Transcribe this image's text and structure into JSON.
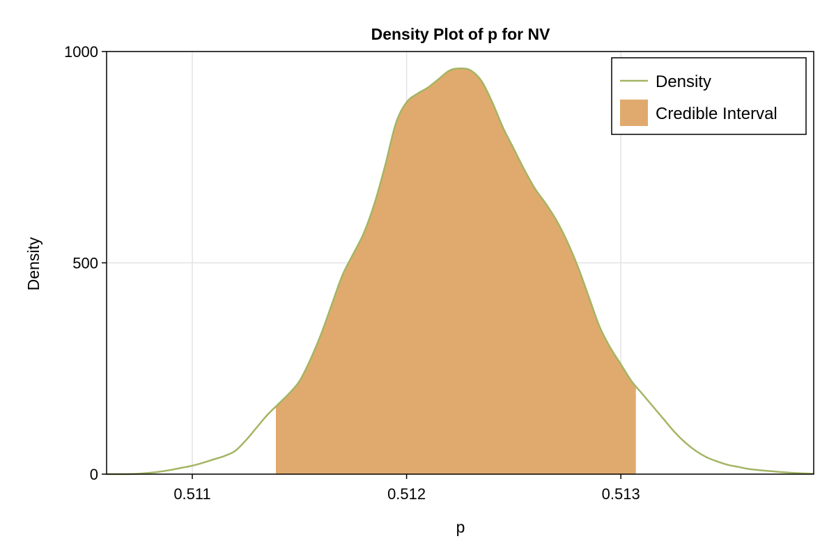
{
  "chart_data": {
    "type": "area",
    "title": "Density Plot of p for NV",
    "xlabel": "p",
    "ylabel": "Density",
    "xlim": [
      0.5106,
      0.5139
    ],
    "ylim": [
      0,
      1000
    ],
    "x_ticks": [
      0.511,
      0.512,
      0.513
    ],
    "x_tick_labels": [
      "0.511",
      "0.512",
      "0.513"
    ],
    "y_ticks": [
      0,
      500,
      1000
    ],
    "y_tick_labels": [
      "0",
      "500",
      "1000"
    ],
    "grid": true,
    "legend_position": "top-right",
    "series": [
      {
        "name": "Density",
        "kind": "line",
        "color": "#a3b563",
        "x": [
          0.5106,
          0.51065,
          0.5107,
          0.51075,
          0.5108,
          0.51085,
          0.5109,
          0.51095,
          0.511,
          0.51105,
          0.5111,
          0.51115,
          0.5112,
          0.51125,
          0.5113,
          0.51135,
          0.5114,
          0.51145,
          0.5115,
          0.51155,
          0.5116,
          0.51165,
          0.5117,
          0.51175,
          0.5118,
          0.51185,
          0.5119,
          0.51195,
          0.512,
          0.51205,
          0.5121,
          0.51215,
          0.5122,
          0.51225,
          0.5123,
          0.51235,
          0.5124,
          0.51245,
          0.5125,
          0.51255,
          0.5126,
          0.51265,
          0.5127,
          0.51275,
          0.5128,
          0.51285,
          0.5129,
          0.51295,
          0.513,
          0.51305,
          0.5131,
          0.51315,
          0.5132,
          0.51325,
          0.5133,
          0.51335,
          0.5134,
          0.51345,
          0.5135,
          0.51355,
          0.5136,
          0.5137,
          0.5138,
          0.5139
        ],
        "y": [
          0,
          0,
          0,
          1,
          3,
          6,
          10,
          15,
          20,
          27,
          35,
          43,
          55,
          80,
          110,
          140,
          165,
          190,
          220,
          270,
          330,
          400,
          470,
          520,
          570,
          640,
          730,
          830,
          880,
          900,
          915,
          935,
          955,
          960,
          955,
          930,
          880,
          820,
          770,
          720,
          675,
          640,
          600,
          550,
          490,
          420,
          350,
          300,
          260,
          220,
          190,
          160,
          130,
          100,
          75,
          55,
          40,
          30,
          22,
          17,
          12,
          7,
          3,
          1
        ]
      },
      {
        "name": "Credible Interval",
        "kind": "band",
        "color": "#e0aa6e",
        "x_range": [
          0.51139,
          0.51307
        ]
      }
    ]
  }
}
